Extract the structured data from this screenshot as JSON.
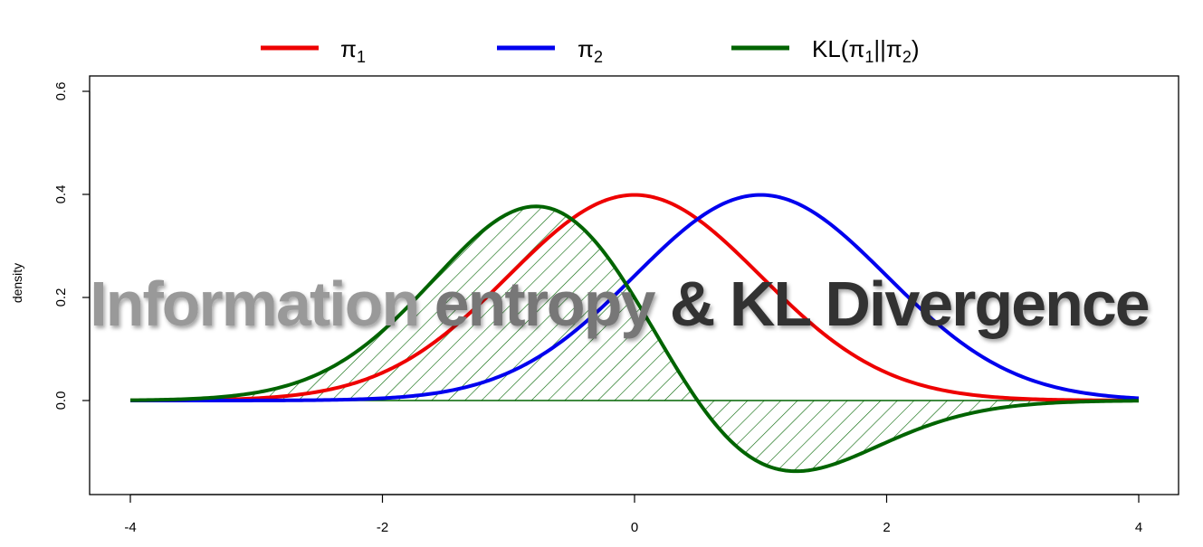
{
  "chart_data": {
    "type": "line",
    "title": "Information entropy & KL Divergence",
    "title_parts": [
      "Information ",
      "entropy ",
      "& KL Divergence"
    ],
    "xlabel": "",
    "ylabel": "density",
    "xlim": [
      -4,
      4
    ],
    "ylim": [
      -0.15,
      0.6
    ],
    "x_ticks": [
      "-4",
      "-2",
      "0",
      "2",
      "4"
    ],
    "x_tick_values": [
      -4,
      -2,
      0,
      2,
      4
    ],
    "y_ticks": [
      "0.0",
      "0.2",
      "0.4",
      "0.6"
    ],
    "y_tick_values": [
      0.0,
      0.2,
      0.4,
      0.6
    ],
    "grid": false,
    "legend_position": "top",
    "series": [
      {
        "name": "π1",
        "label_main": "π",
        "label_sub": "1",
        "color": "#ee0000",
        "distribution": "normal",
        "mean": 0,
        "sd": 1
      },
      {
        "name": "π2",
        "label_main": "π",
        "label_sub": "2",
        "color": "#0000ee",
        "distribution": "normal",
        "mean": 1,
        "sd": 1
      },
      {
        "name": "KL(π1||π2)",
        "label_pre": "KL(π",
        "label_sub1": "1",
        "label_mid": "||π",
        "label_sub2": "2",
        "label_post": ")",
        "color": "#006400",
        "formula": "π1 × log(π1/π2)",
        "shaded": true,
        "hatch": "diagonal"
      }
    ],
    "annotations": [
      {
        "type": "hline",
        "y": 0,
        "color": "#006400"
      }
    ],
    "colors": {
      "title_light": "#999999",
      "title_mid": "#777777",
      "title_dark": "#333333"
    }
  }
}
